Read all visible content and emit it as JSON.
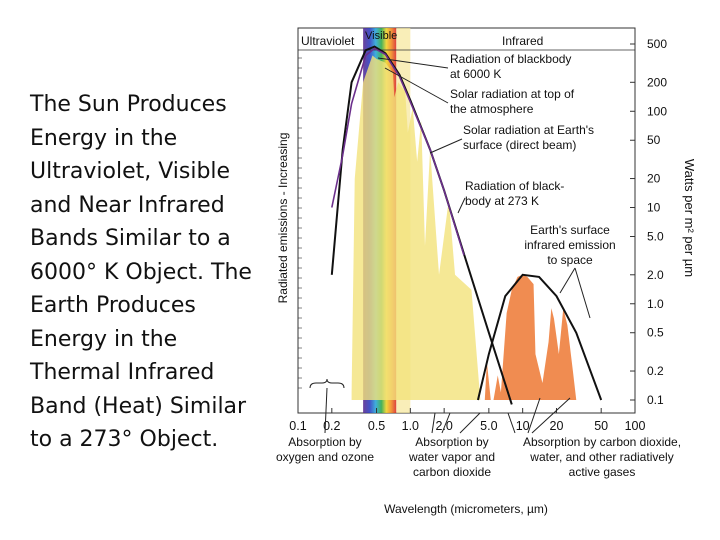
{
  "slide": {
    "text_lines": [
      "The Sun Produces",
      "Energy in the",
      "Ultraviolet, Visible",
      "and Near Infrared",
      "Bands Similar to a",
      "6000° K Object.  The",
      "Earth Produces",
      "Energy in the",
      "Thermal Infrared",
      "Band (Heat) Similar",
      "to a 273° Object."
    ]
  },
  "chart_data": {
    "type": "line",
    "xlabel": "Wavelength (micrometers, µm)",
    "ylabel_left": "Radiated emissions - Increasing",
    "ylabel_right": "Watts per m² per µm",
    "x_scale": "log",
    "xlim": [
      0.1,
      100
    ],
    "x_ticks": [
      "0.1",
      "0.2",
      "0.5",
      "1.0",
      "2.0",
      "5.0",
      "10",
      "20",
      "50",
      "100"
    ],
    "x_tick_values": [
      0.1,
      0.2,
      0.5,
      1.0,
      2.0,
      5.0,
      10,
      20,
      50,
      100
    ],
    "y_right_ticks": [
      "500",
      "200",
      "100",
      "50",
      "20",
      "10",
      "5.0",
      "2.0",
      "1.0",
      "0.5",
      "0.2",
      "0.1"
    ],
    "y_right_values": [
      500,
      200,
      100,
      50,
      20,
      10,
      5,
      2,
      1,
      0.5,
      0.2,
      0.1
    ],
    "bands": [
      {
        "label": "Ultraviolet",
        "range": [
          0.1,
          0.4
        ]
      },
      {
        "label": "Visible",
        "range": [
          0.4,
          0.7
        ]
      },
      {
        "label": "Infrared",
        "range": [
          0.7,
          100
        ]
      }
    ],
    "series": [
      {
        "name": "Radiation of blackbody at 6000 K",
        "points": [
          [
            0.2,
            2
          ],
          [
            0.25,
            40
          ],
          [
            0.3,
            200
          ],
          [
            0.4,
            430
          ],
          [
            0.48,
            470
          ],
          [
            0.6,
            400
          ],
          [
            0.8,
            240
          ],
          [
            1.0,
            130
          ],
          [
            1.5,
            40
          ],
          [
            2.0,
            15
          ],
          [
            3.0,
            3.3
          ],
          [
            5.0,
            0.5
          ],
          [
            8.0,
            0.09
          ]
        ]
      },
      {
        "name": "Solar radiation at top of the atmosphere",
        "points": [
          [
            0.2,
            10
          ],
          [
            0.25,
            35
          ],
          [
            0.3,
            120
          ],
          [
            0.4,
            380
          ],
          [
            0.48,
            450
          ],
          [
            0.6,
            390
          ],
          [
            0.8,
            230
          ],
          [
            1.0,
            125
          ],
          [
            1.5,
            40
          ],
          [
            2.0,
            15
          ],
          [
            3.0,
            3.2
          ]
        ]
      },
      {
        "name": "Radiation of blackbody at 273 K",
        "points": [
          [
            4,
            0.1
          ],
          [
            5,
            0.3
          ],
          [
            7,
            1.2
          ],
          [
            10,
            2.0
          ],
          [
            14,
            1.9
          ],
          [
            20,
            1.2
          ],
          [
            30,
            0.5
          ],
          [
            50,
            0.1
          ]
        ]
      }
    ],
    "annotations": [
      "Radiation of blackbody at 6000 K",
      "Solar radiation at top of the atmosphere",
      "Solar radiation at Earth's surface (direct beam)",
      "Radiation of black-body at 273 K",
      "Earth's surface infrared emission to space",
      "Absorption by oxygen and ozone",
      "Absorption by water vapor and carbon dioxide",
      "Absorption by carbon dioxide, water, and other radiatively active gases"
    ],
    "colors": {
      "blackbody": "#111111",
      "toa": "#6b2f8c",
      "surface": "#f3e27a",
      "earth_emission": "#ee7f3e"
    }
  }
}
